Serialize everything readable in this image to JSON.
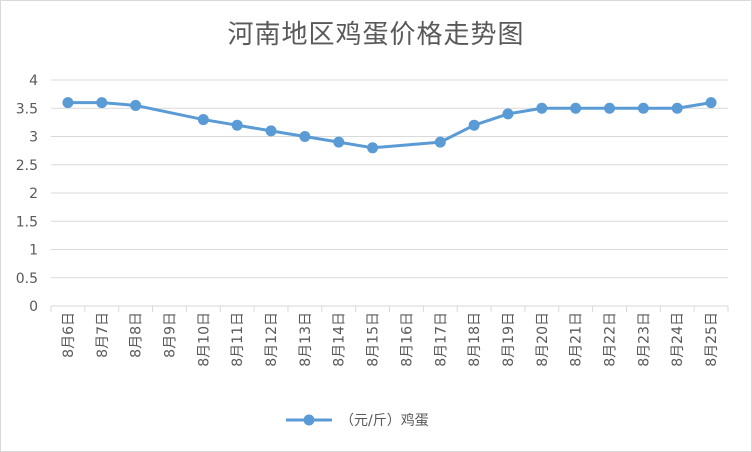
{
  "chart_data": {
    "type": "line",
    "title": "河南地区鸡蛋价格走势图",
    "xlabel": "",
    "ylabel": "",
    "categories": [
      "8月6日",
      "8月7日",
      "8月8日",
      "8月9日",
      "8月10日",
      "8月11日",
      "8月12日",
      "8月13日",
      "8月14日",
      "8月15日",
      "8月16日",
      "8月17日",
      "8月18日",
      "8月19日",
      "8月20日",
      "8月21日",
      "8月22日",
      "8月23日",
      "8月24日",
      "8月25日"
    ],
    "series": [
      {
        "name": "（元/斤）鸡蛋",
        "values": [
          3.6,
          3.6,
          3.55,
          null,
          3.3,
          3.2,
          3.1,
          3.0,
          2.9,
          2.8,
          null,
          2.9,
          3.2,
          3.4,
          3.5,
          3.5,
          3.5,
          3.5,
          3.5,
          3.6
        ]
      }
    ],
    "yticks": [
      "0",
      "0.5",
      "1",
      "1.5",
      "2",
      "2.5",
      "3",
      "3.5",
      "4"
    ],
    "ylim": [
      0,
      4
    ],
    "grid": true,
    "legend": "bottom",
    "colors": {
      "series": "#5b9bd5",
      "grid": "#d9d9d9",
      "text": "#595959"
    }
  }
}
